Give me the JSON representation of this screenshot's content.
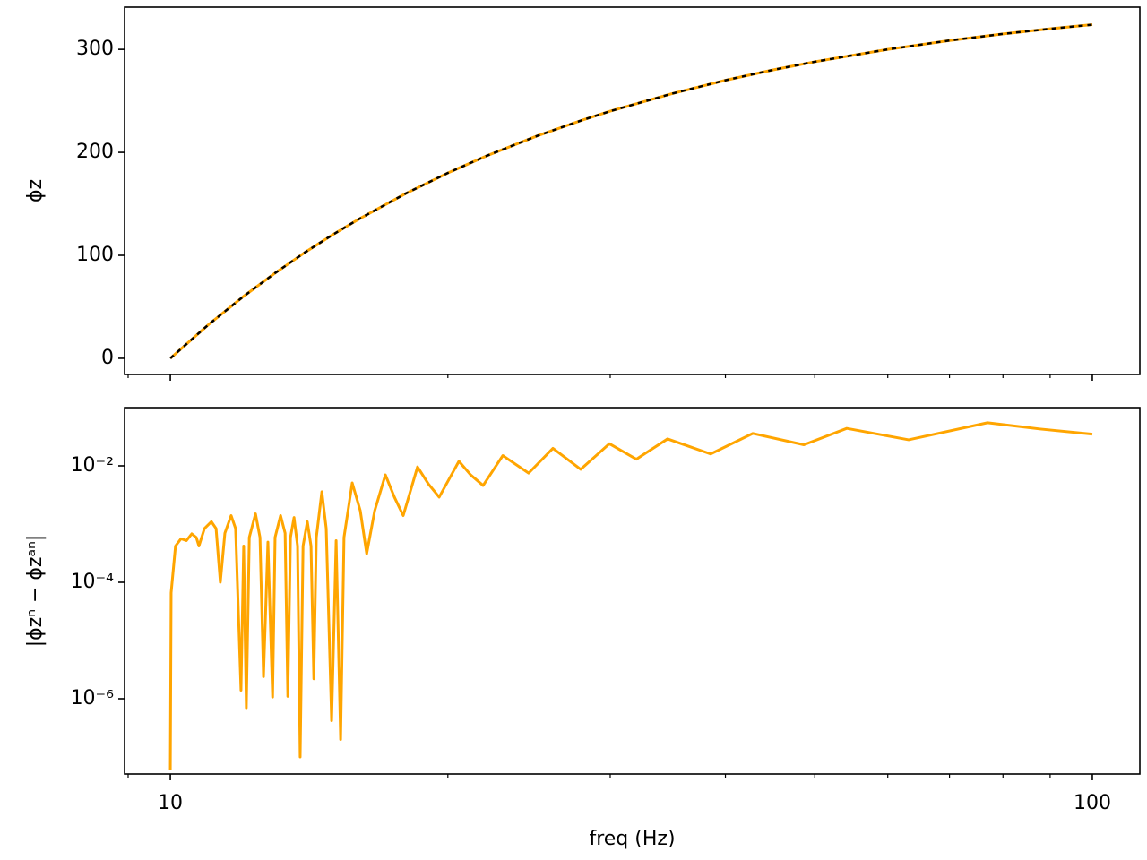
{
  "chart_data": [
    {
      "type": "line",
      "ylabel": "ϕz",
      "x": [
        10,
        11,
        12,
        13,
        14,
        15,
        16,
        18,
        20,
        22,
        25,
        28,
        30,
        35,
        40,
        45,
        50,
        60,
        70,
        80,
        90,
        100
      ],
      "series": [
        {
          "color": "#ffa500",
          "values": [
            0,
            32.7,
            60,
            83,
            102.9,
            120,
            135,
            160,
            180,
            196.4,
            216,
            231.4,
            240,
            257,
            270,
            280,
            288,
            300,
            308.6,
            315,
            320,
            324
          ]
        },
        {
          "color": "#000000",
          "dashed": true,
          "values": [
            0,
            32.7,
            60,
            83,
            102.9,
            120,
            135,
            160,
            180,
            196.4,
            216,
            231.4,
            240,
            257,
            270,
            280,
            288,
            300,
            308.6,
            315,
            320,
            324
          ]
        }
      ],
      "ylim": [
        -15.7,
        341
      ],
      "yticks": [
        0,
        100,
        200,
        300
      ]
    },
    {
      "type": "line",
      "xlabel": "freq (Hz)",
      "ylabel": "|ϕzⁿ − ϕzᵃⁿ|",
      "xlog": true,
      "ylog": true,
      "x": [
        10,
        10.02,
        10.13,
        10.27,
        10.41,
        10.55,
        10.67,
        10.74,
        10.89,
        11.08,
        11.21,
        11.33,
        11.46,
        11.64,
        11.77,
        11.93,
        12.01,
        12.09,
        12.18,
        12.37,
        12.51,
        12.62,
        12.76,
        12.91,
        12.99,
        13.17,
        13.32,
        13.41,
        13.5,
        13.62,
        13.74,
        13.83,
        13.93,
        14.08,
        14.21,
        14.31,
        14.4,
        14.6,
        14.76,
        14.96,
        15.13,
        15.3,
        15.43,
        15.75,
        16.07,
        16.33,
        16.66,
        17.11,
        17.5,
        17.89,
        18.54,
        19.05,
        19.57,
        20.56,
        21.17,
        21.84,
        22.94,
        24.47,
        26,
        27.87,
        29.94,
        32.02,
        34.62,
        38.55,
        42.82,
        48.66,
        54.16,
        63.22,
        76.97,
        87.64,
        100
      ],
      "series": [
        {
          "color": "#ffa500",
          "values": [
            5.9e-08,
            6.6e-05,
            0.00042,
            0.00056,
            0.00052,
            0.00068,
            0.00059,
            0.00042,
            0.00084,
            0.0011,
            0.00084,
            0.0001,
            0.0007,
            0.0014,
            0.00084,
            1.4e-06,
            0.00042,
            7e-07,
            0.00059,
            0.0015,
            0.00059,
            2.4e-06,
            0.00049,
            1.07e-06,
            0.00059,
            0.0014,
            0.0007,
            1.1e-06,
            0.00059,
            0.0013,
            0.00042,
            1e-07,
            0.00042,
            0.0011,
            0.00042,
            2.2e-06,
            0.00059,
            0.0036,
            0.00084,
            4.2e-07,
            0.00052,
            2e-07,
            0.00059,
            0.0051,
            0.0017,
            0.00031,
            0.0017,
            0.007,
            0.0029,
            0.0014,
            0.0096,
            0.0049,
            0.0029,
            0.012,
            0.007,
            0.0046,
            0.015,
            0.0075,
            0.02,
            0.0087,
            0.024,
            0.013,
            0.029,
            0.016,
            0.036,
            0.023,
            0.044,
            0.028,
            0.055,
            0.043,
            0.035
          ]
        }
      ],
      "xlim": [
        8.92,
        112.6
      ],
      "xticks": [
        10,
        100
      ],
      "xminorticks": [
        9,
        20,
        30,
        40,
        50,
        60,
        70,
        80,
        90
      ],
      "ylim": [
        5.1e-08,
        0.1
      ],
      "yticks": [
        {
          "value": 0.01,
          "label": "10⁻²"
        },
        {
          "value": 0.0001,
          "label": "10⁻⁴"
        },
        {
          "value": 1e-06,
          "label": "10⁻⁶"
        }
      ]
    }
  ]
}
